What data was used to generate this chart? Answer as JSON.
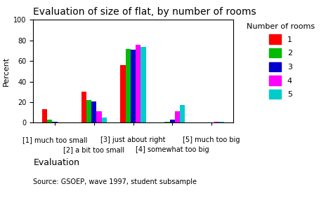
{
  "title": "Evaluation of size of flat, by number of rooms",
  "ylabel": "Percent",
  "xlabel": "Evaluation",
  "source_text": "Source: GSOEP, wave 1997, student subsample",
  "categories": [
    "[1] much too small",
    "[2] a bit too small",
    "[3] just about right",
    "[4] somewhat too big",
    "[5] much too big"
  ],
  "series": {
    "1": [
      13,
      30,
      56,
      0,
      0
    ],
    "2": [
      3,
      22,
      72,
      1,
      0
    ],
    "3": [
      1,
      21,
      71,
      3,
      0
    ],
    "4": [
      0,
      11,
      76,
      11,
      1
    ],
    "5": [
      0,
      5,
      74,
      17,
      1
    ]
  },
  "colors": {
    "1": "#ff0000",
    "2": "#00bb00",
    "3": "#0000cc",
    "4": "#ff00ff",
    "5": "#00cccc"
  },
  "legend_title": "Number of rooms",
  "ylim": [
    0,
    100
  ],
  "yticks": [
    0,
    20,
    40,
    60,
    80,
    100
  ],
  "background_color": "#ffffff",
  "title_fontsize": 10,
  "axis_fontsize": 8,
  "tick_fontsize": 7,
  "legend_fontsize": 8
}
